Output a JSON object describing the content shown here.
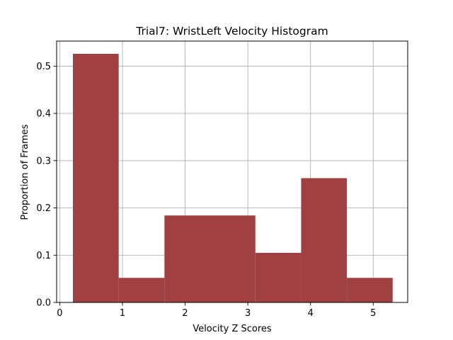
{
  "chart_data": {
    "type": "bar",
    "title": "Trial7: WristLeft Velocity Histogram",
    "xlabel": "Velocity Z Scores",
    "ylabel": "Proportion of Frames",
    "xlim": [
      -0.05,
      5.55
    ],
    "ylim": [
      0,
      0.553
    ],
    "xticks": [
      0,
      1,
      2,
      3,
      4,
      5
    ],
    "xtick_labels": [
      "0",
      "1",
      "2",
      "3",
      "4",
      "5"
    ],
    "yticks": [
      0.0,
      0.1,
      0.2,
      0.3,
      0.4,
      0.5
    ],
    "ytick_labels": [
      "0.0",
      "0.1",
      "0.2",
      "0.3",
      "0.4",
      "0.5"
    ],
    "grid": true,
    "bar_color": "#a04040",
    "bins": [
      {
        "x0": 0.21,
        "x1": 0.94,
        "value": 0.526
      },
      {
        "x0": 0.94,
        "x1": 1.67,
        "value": 0.052
      },
      {
        "x0": 1.67,
        "x1": 2.4,
        "value": 0.184
      },
      {
        "x0": 2.4,
        "x1": 3.12,
        "value": 0.184
      },
      {
        "x0": 3.12,
        "x1": 3.85,
        "value": 0.105
      },
      {
        "x0": 3.85,
        "x1": 4.58,
        "value": 0.263
      },
      {
        "x0": 4.58,
        "x1": 5.31,
        "value": 0.052
      }
    ]
  }
}
